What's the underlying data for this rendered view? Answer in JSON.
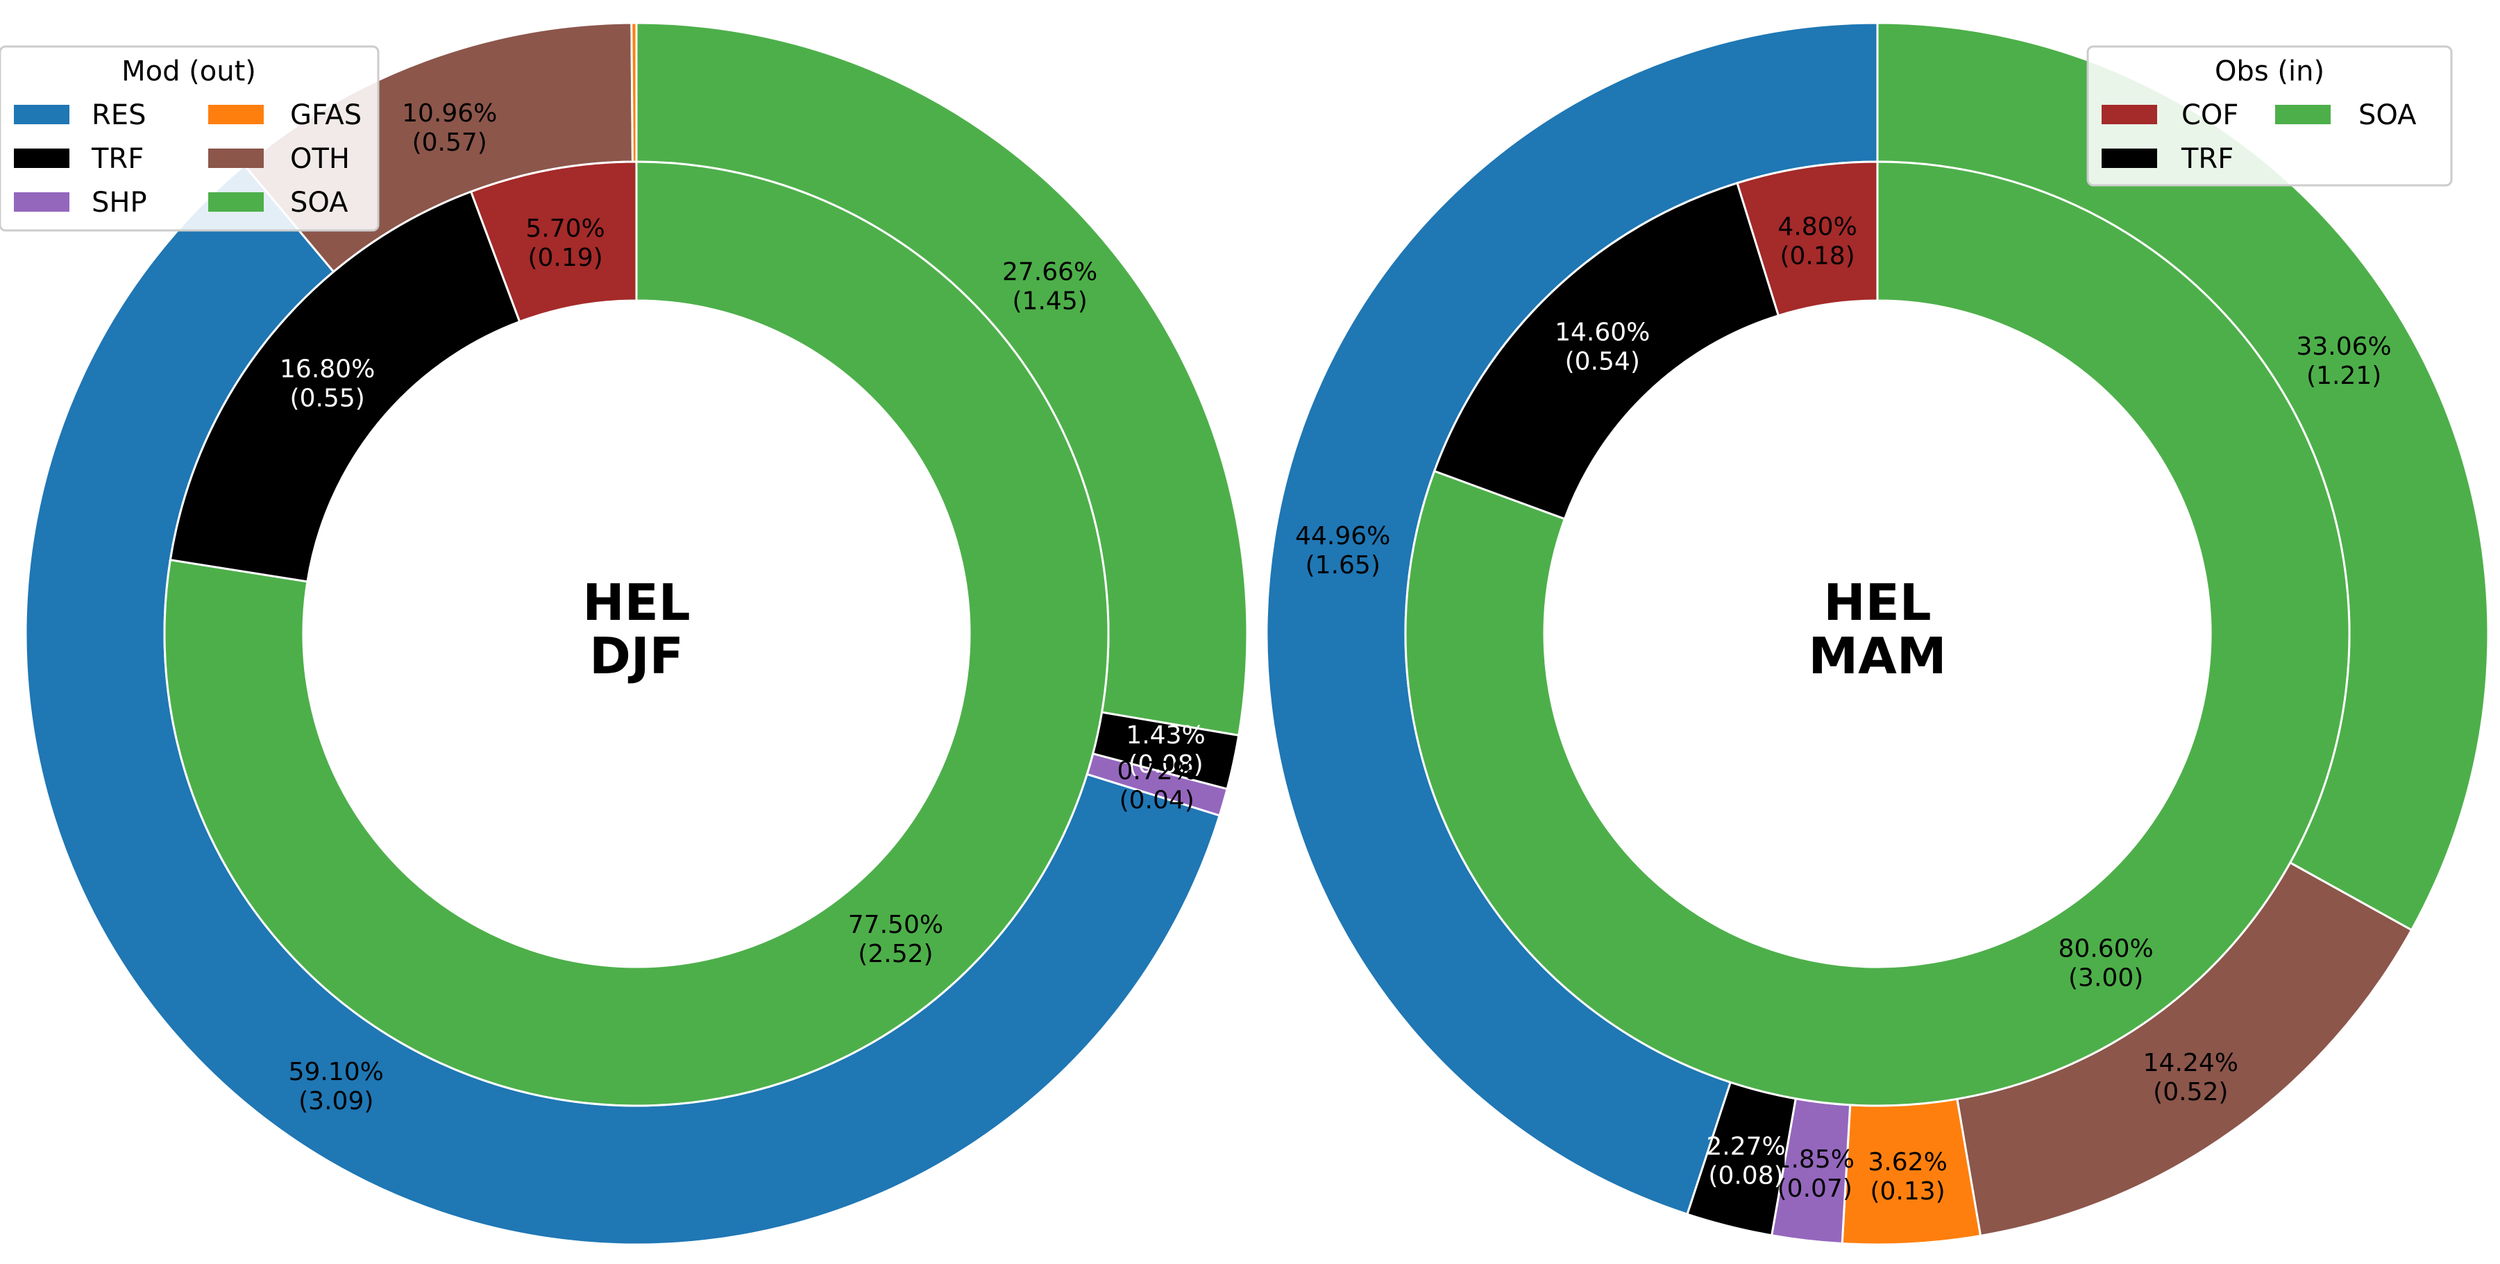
{
  "colors": {
    "RES": "#1f77b4",
    "TRF": "#000000",
    "SHP": "#9467bd",
    "GFAS": "#ff7f0e",
    "OTH": "#8c564b",
    "SOA": "#4daf4a",
    "COF": "#a52a2a"
  },
  "chart_data": [
    {
      "type": "pie",
      "center_line1": "HEL",
      "center_line2": "DJF",
      "legend": {
        "title": "Mod (out)",
        "placement": "top-left",
        "columns": 2,
        "entries": [
          "RES",
          "TRF",
          "SHP",
          "GFAS",
          "OTH",
          "SOA"
        ]
      },
      "outer_ring": [
        {
          "category": "SOA",
          "percent": 27.66,
          "value": 1.45,
          "pct_label": "27.66%",
          "val_label": "(1.45)",
          "text_color": "#000000"
        },
        {
          "category": "TRF",
          "percent": 1.43,
          "value": 0.08,
          "pct_label": "1.43%",
          "val_label": "(0.08)",
          "text_color": "#ffffff"
        },
        {
          "category": "SHP",
          "percent": 0.72,
          "value": 0.04,
          "pct_label": "0.72%",
          "val_label": "(0.04)",
          "text_color": "#000000"
        },
        {
          "category": "RES",
          "percent": 59.1,
          "value": 3.09,
          "pct_label": "59.10%",
          "val_label": "(3.09)",
          "text_color": "#000000"
        },
        {
          "category": "OTH",
          "percent": 10.96,
          "value": 0.57,
          "pct_label": "10.96%",
          "val_label": "(0.57)",
          "text_color": "#000000"
        },
        {
          "category": "GFAS",
          "percent": 0.13,
          "value": 0.01,
          "pct_label": "",
          "val_label": "",
          "text_color": "#000000"
        }
      ],
      "inner_ring": [
        {
          "category": "SOA",
          "percent": 77.5,
          "value": 2.52,
          "pct_label": "77.50%",
          "val_label": "(2.52)",
          "text_color": "#000000"
        },
        {
          "category": "TRF",
          "percent": 16.8,
          "value": 0.55,
          "pct_label": "16.80%",
          "val_label": "(0.55)",
          "text_color": "#ffffff"
        },
        {
          "category": "COF",
          "percent": 5.7,
          "value": 0.19,
          "pct_label": "5.70%",
          "val_label": "(0.19)",
          "text_color": "#000000"
        }
      ]
    },
    {
      "type": "pie",
      "center_line1": "HEL",
      "center_line2": "MAM",
      "legend": {
        "title": "Obs (in)",
        "placement": "top-right",
        "columns": 2,
        "entries": [
          "COF",
          "TRF",
          "SOA"
        ]
      },
      "outer_ring": [
        {
          "category": "SOA",
          "percent": 33.06,
          "value": 1.21,
          "pct_label": "33.06%",
          "val_label": "(1.21)",
          "text_color": "#000000"
        },
        {
          "category": "OTH",
          "percent": 14.24,
          "value": 0.52,
          "pct_label": "14.24%",
          "val_label": "(0.52)",
          "text_color": "#000000"
        },
        {
          "category": "GFAS",
          "percent": 3.62,
          "value": 0.13,
          "pct_label": "3.62%",
          "val_label": "(0.13)",
          "text_color": "#000000"
        },
        {
          "category": "SHP",
          "percent": 1.85,
          "value": 0.07,
          "pct_label": "1.85%",
          "val_label": "(0.07)",
          "text_color": "#000000"
        },
        {
          "category": "TRF",
          "percent": 2.27,
          "value": 0.08,
          "pct_label": "2.27%",
          "val_label": "(0.08)",
          "text_color": "#ffffff"
        },
        {
          "category": "RES",
          "percent": 44.96,
          "value": 1.65,
          "pct_label": "44.96%",
          "val_label": "(1.65)",
          "text_color": "#000000"
        }
      ],
      "inner_ring": [
        {
          "category": "SOA",
          "percent": 80.6,
          "value": 3.0,
          "pct_label": "80.60%",
          "val_label": "(3.00)",
          "text_color": "#000000"
        },
        {
          "category": "TRF",
          "percent": 14.6,
          "value": 0.54,
          "pct_label": "14.60%",
          "val_label": "(0.54)",
          "text_color": "#ffffff"
        },
        {
          "category": "COF",
          "percent": 4.8,
          "value": 0.18,
          "pct_label": "4.80%",
          "val_label": "(0.18)",
          "text_color": "#000000"
        }
      ]
    }
  ]
}
